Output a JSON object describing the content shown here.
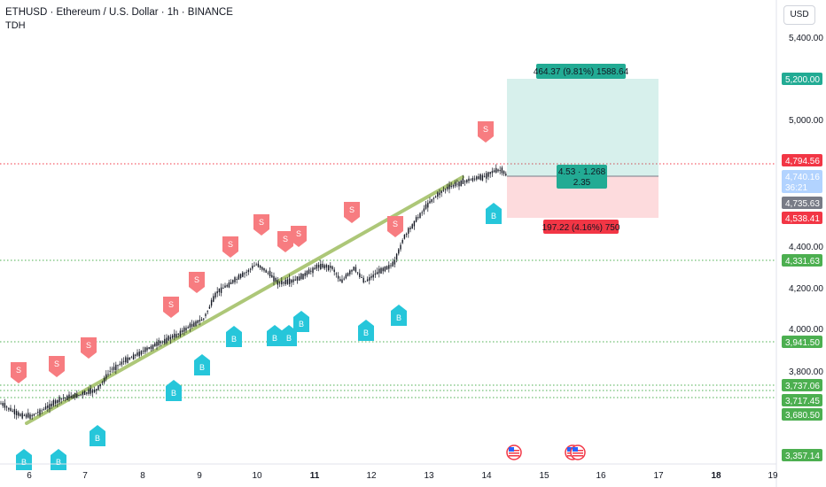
{
  "header": {
    "title": "ETHUSD · Ethereum / U.S. Dollar · 1h · BINANCE",
    "indicator": "TDH"
  },
  "currency_button": "USD",
  "price_axis": {
    "ticks": [
      "5,400.00",
      "5,000.00",
      "4,400.00",
      "4,200.00",
      "4,000.00",
      "3,800.00"
    ]
  },
  "time_axis": {
    "ticks": [
      "6",
      "7",
      "8",
      "9",
      "10",
      "11",
      "12",
      "13",
      "14",
      "15",
      "16",
      "17",
      "18",
      "19"
    ],
    "bold": [
      "11",
      "18"
    ]
  },
  "price_badges": [
    {
      "label": "5,200.00",
      "color": "#22ab94"
    },
    {
      "label": "4,794.56",
      "color": "#f23645"
    },
    {
      "label": "4,740.16",
      "sub": "36:21",
      "color": "#b2d3ff",
      "text_color": "#131722"
    },
    {
      "label": "4,735.63",
      "color": "#787b86"
    },
    {
      "label": "4,538.41",
      "color": "#f23645"
    },
    {
      "label": "4,331.63",
      "color": "#4caf50"
    },
    {
      "label": "3,941.50",
      "color": "#4caf50"
    },
    {
      "label": "3,737.06",
      "color": "#4caf50"
    },
    {
      "label": "3,717.45",
      "color": "#4caf50"
    },
    {
      "label": "3,680.50",
      "color": "#4caf50"
    },
    {
      "label": "3,357.14",
      "color": "#4caf50"
    }
  ],
  "position_tool": {
    "target_label": "464.37 (9.81%) 1588.64",
    "stop_label": "197.22 (4.16%) 750",
    "ratio_line1": "4.53 · 1.268",
    "ratio_line2": "2.35"
  },
  "markers": {
    "sell_letter": "S",
    "buy_letter": "B",
    "sell_color": "#f77c80",
    "buy_color": "#26c6da"
  },
  "colors": {
    "trendline": "#a5c26a",
    "green_level": "#4caf50",
    "red_level": "#f23645",
    "candle": "#131722"
  }
}
